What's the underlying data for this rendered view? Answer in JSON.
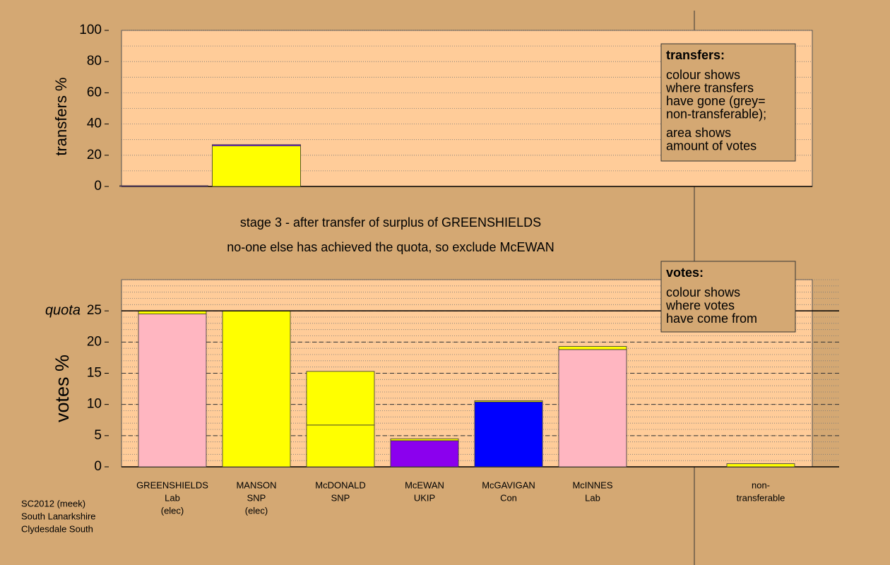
{
  "chart_data": [
    {
      "type": "stacked-bar",
      "ylabel": "transfers %",
      "ylim": [
        0,
        100
      ],
      "yticks": [
        0,
        20,
        40,
        60,
        80,
        100
      ],
      "minor_grid_step": 10,
      "categories": [
        null,
        null
      ],
      "segments": [
        [
          {
            "value": 0.5,
            "color": "#9b30ff"
          }
        ],
        [
          {
            "value": 26,
            "color": "#ffff00"
          },
          {
            "value": 0.8,
            "color": "#9b30ff"
          }
        ]
      ],
      "note_title": "transfers:",
      "note_lines": [
        [
          "colour shows",
          "where transfers",
          "have gone (grey=",
          "non-transferable);"
        ],
        [
          "area shows",
          "amount of votes"
        ]
      ]
    },
    {
      "type": "stacked-bar",
      "ylabel": "votes %",
      "ylim": [
        0,
        30
      ],
      "yticks": [
        0,
        5,
        10,
        15,
        20,
        25
      ],
      "minor_grid_step": 1,
      "quota": 25,
      "quota_label": "quota",
      "categories": [
        [
          "GREENSHIELDS",
          "Lab",
          "(elec)"
        ],
        [
          "MANSON",
          "SNP",
          "(elec)"
        ],
        [
          "McDONALD",
          "SNP"
        ],
        [
          "McEWAN",
          "UKIP"
        ],
        [
          "McGAVIGAN",
          "Con"
        ],
        [
          "McINNES",
          "Lab"
        ],
        null,
        [
          "non-",
          "transferable"
        ]
      ],
      "segments": [
        [
          {
            "value": 24.5,
            "color": "#ffb6c1"
          },
          {
            "value": 0.5,
            "color": "#ffff00"
          }
        ],
        [
          {
            "value": 25,
            "color": "#ffff00"
          }
        ],
        [
          {
            "value": 6.7,
            "color": "#ffff00"
          },
          {
            "value": 8.6,
            "color": "#ffff00"
          }
        ],
        [
          {
            "value": 4.2,
            "color": "#8b00ee"
          },
          {
            "value": 0.3,
            "color": "#ffff00"
          }
        ],
        [
          {
            "value": 10.4,
            "color": "#0000ff"
          },
          {
            "value": 0.2,
            "color": "#ffff00"
          }
        ],
        [
          {
            "value": 18.8,
            "color": "#ffb6c1"
          },
          {
            "value": 0.5,
            "color": "#ffff00"
          }
        ],
        [],
        [
          {
            "value": 0.5,
            "color": "#ffff00"
          }
        ]
      ],
      "note_title": "votes:",
      "note_lines": [
        [
          "colour shows",
          "where votes",
          "have come from"
        ]
      ]
    }
  ],
  "stage_text": [
    "stage 3 - after transfer of surplus of GREENSHIELDS",
    "no-one else has achieved the quota, so exclude McEWAN"
  ],
  "footer": [
    "SC2012 (meek)",
    "South Lanarkshire",
    "Clydesdale South"
  ]
}
